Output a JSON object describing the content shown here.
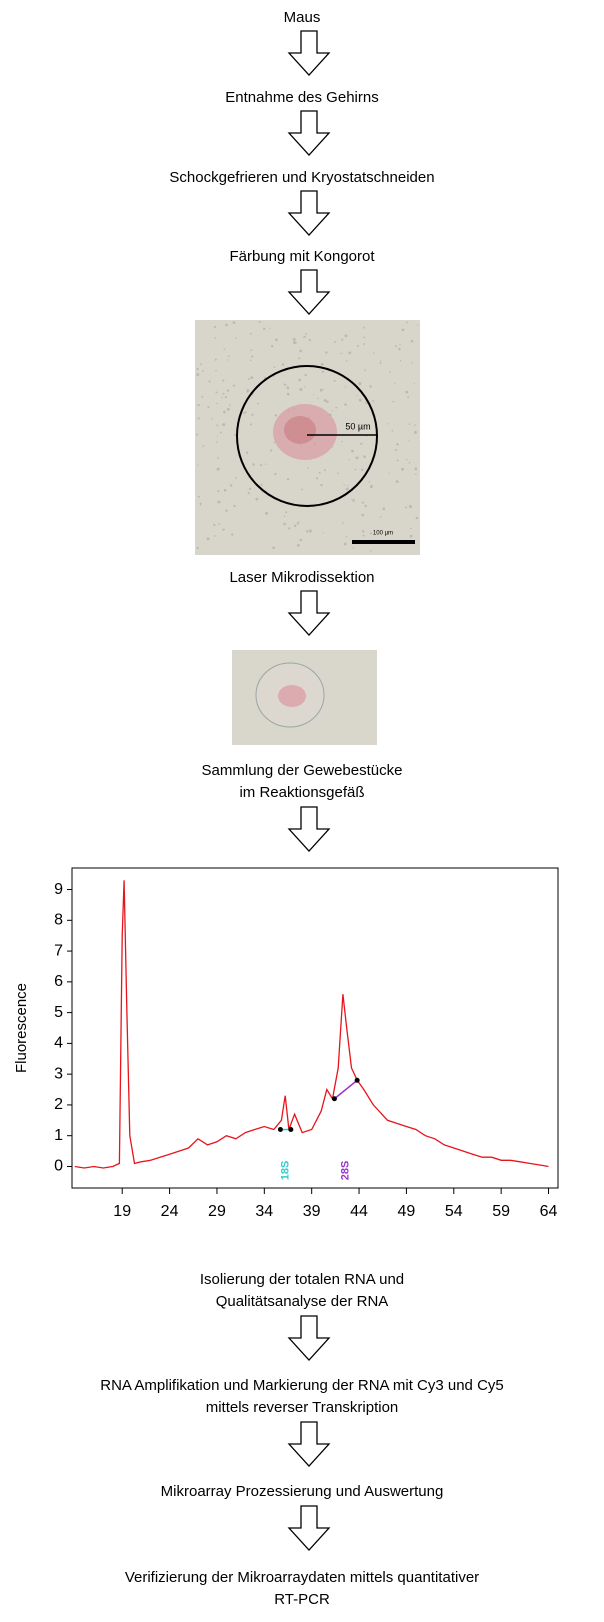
{
  "steps": [
    "Maus",
    "Entnahme des Gehirns",
    "Schockgefrieren und Kryostatschneiden",
    "Färbung mit Kongorot"
  ],
  "microdissection_image": {
    "circle_label": "50 µm",
    "scale_label": "100 µm",
    "caption": "Laser Mikrodissektion"
  },
  "collection_image": {
    "caption": [
      "Sammlung der Gewebestücke",
      "im Reaktionsgefäß"
    ]
  },
  "chart_data": {
    "type": "line",
    "y_label": "Fluorescence",
    "color": "#e8141c",
    "x": [
      14,
      15,
      16,
      17,
      18,
      18.7,
      19,
      19.2,
      19.5,
      19.8,
      20.3,
      21,
      22,
      23,
      24,
      25,
      26,
      27,
      28,
      29,
      30,
      31,
      32,
      33,
      34,
      35,
      35.8,
      36.2,
      36.6,
      37.2,
      38,
      39,
      40,
      40.6,
      41.2,
      41.8,
      42.3,
      42.7,
      43.2,
      43.8,
      44.5,
      45.5,
      47,
      48,
      49,
      50,
      51,
      52,
      53,
      54,
      55,
      56,
      57,
      58,
      59,
      60,
      61,
      62,
      63,
      64
    ],
    "values": [
      0,
      -0.05,
      0,
      -0.05,
      0,
      0.1,
      7.5,
      9.3,
      5,
      1,
      0.1,
      0.15,
      0.2,
      0.3,
      0.4,
      0.5,
      0.6,
      0.9,
      0.7,
      0.8,
      1.0,
      0.9,
      1.1,
      1.2,
      1.3,
      1.2,
      1.5,
      2.3,
      1.2,
      1.7,
      1.1,
      1.2,
      1.8,
      2.5,
      2.2,
      3.2,
      5.6,
      4.5,
      3.2,
      2.8,
      2.5,
      2.0,
      1.5,
      1.4,
      1.3,
      1.2,
      1.0,
      0.9,
      0.7,
      0.6,
      0.5,
      0.4,
      0.3,
      0.3,
      0.2,
      0.2,
      0.15,
      0.1,
      0.05,
      0
    ],
    "markers": [
      {
        "label": "18S",
        "color": "#33cccc",
        "x": [
          35.7,
          36.8
        ],
        "y": [
          1.2,
          1.2
        ]
      },
      {
        "label": "28S",
        "color": "#9933cc",
        "x": [
          41.4,
          43.8
        ],
        "y": [
          2.2,
          2.8
        ]
      }
    ],
    "xlim": [
      13.7,
      65
    ],
    "ylim": [
      -0.7,
      9.7
    ],
    "xticks": [
      19,
      24,
      29,
      34,
      39,
      44,
      49,
      54,
      59,
      64
    ],
    "yticks": [
      0,
      1,
      2,
      3,
      4,
      5,
      6,
      7,
      8,
      9
    ]
  },
  "chart_caption": [
    "Isolierung der totalen RNA und",
    "Qualitätsanalyse der RNA"
  ],
  "later_steps": [
    [
      "RNA Amplifikation und Markierung der RNA mit Cy3 und Cy5",
      "mittels reverser Transkription"
    ],
    [
      "Mikroarray Prozessierung und Auswertung"
    ],
    [
      "Verifizierung der Mikroarraydaten mittels quantitativer",
      "RT-PCR"
    ]
  ]
}
